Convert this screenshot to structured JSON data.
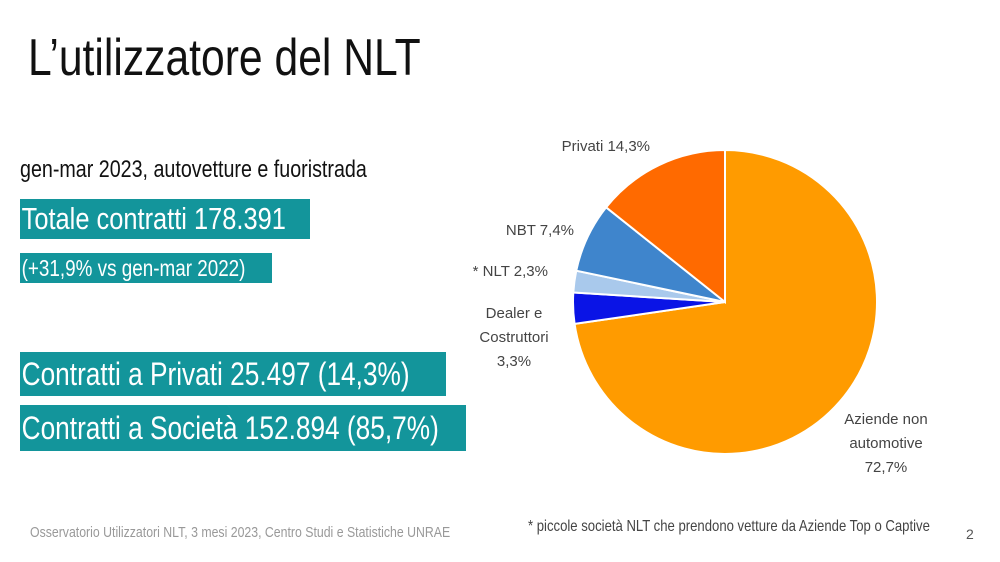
{
  "title": "L’utilizzatore del NLT",
  "subtitle": "gen-mar 2023, autovetture e fuoristrada",
  "total_contracts": "Totale contratti 178.391",
  "yoy_change": "(+31,9% vs  gen-mar 2022)",
  "private_contracts": "Contratti a Privati  25.497 (14,3%)",
  "company_contracts": "Contratti a Società 152.894 (85,7%)",
  "source": "Osservatorio Utilizzatori NLT, 3 mesi 2023, Centro Studi e Statistiche UNRAE",
  "footnote": "* piccole società NLT che prendono vetture da Aziende Top o Captive",
  "page_number": "2",
  "chart_data": {
    "type": "pie",
    "slices": [
      {
        "label_lines": [
          "Aziende non",
          "automotive",
          "72,7%"
        ],
        "value": 72.7,
        "color": "#ff9b00"
      },
      {
        "label_lines": [
          "Dealer e",
          "Costruttori",
          "3,3%"
        ],
        "value": 3.3,
        "color": "#0a14e6"
      },
      {
        "label_lines": [
          "* NLT 2,3%"
        ],
        "value": 2.3,
        "color": "#a9c9ec"
      },
      {
        "label_lines": [
          "NBT 7,4%"
        ],
        "value": 7.4,
        "color": "#3f85cc"
      },
      {
        "label_lines": [
          "Privati 14,3%"
        ],
        "value": 14.3,
        "color": "#ff6a00"
      }
    ]
  }
}
